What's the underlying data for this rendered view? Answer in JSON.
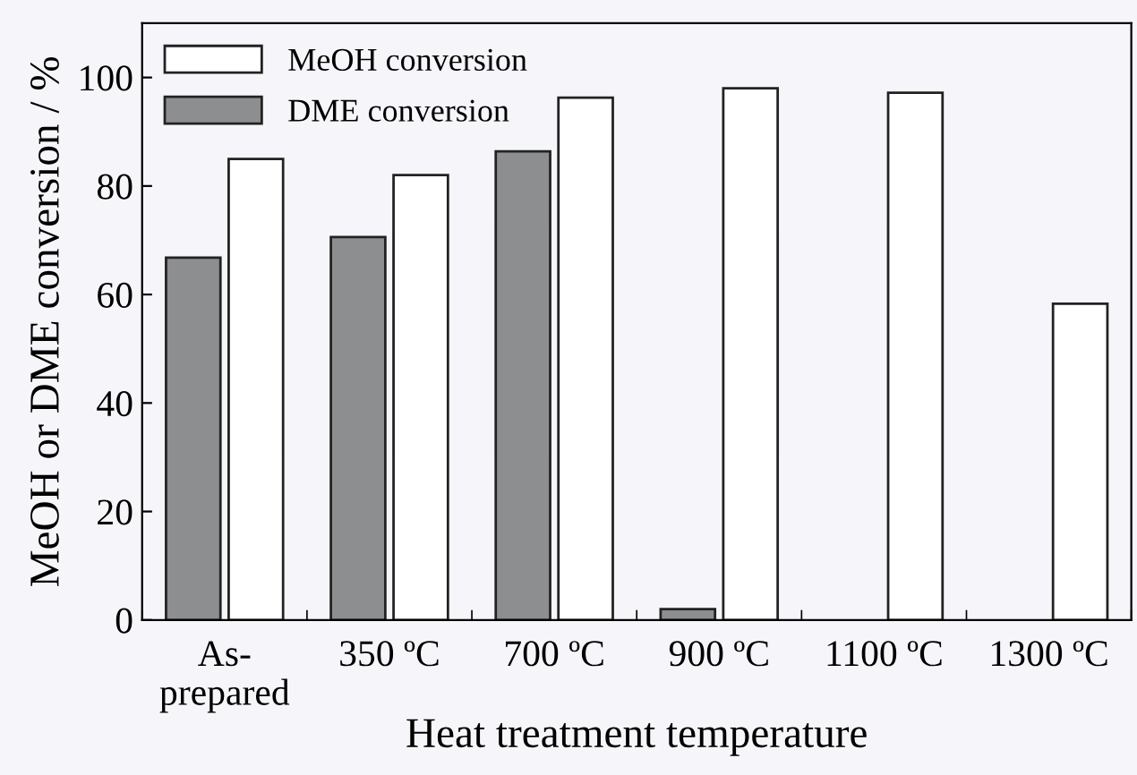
{
  "chart_data": {
    "type": "bar",
    "xlabel": "Heat treatment temperature",
    "ylabel": "MeOH or DME conversion / %",
    "categories": [
      "As-\nprepared",
      "350 ºC",
      "700 ºC",
      "900 ºC",
      "1100 ºC",
      "1300 ºC"
    ],
    "series": [
      {
        "name": "DME conversion",
        "color": "#8c8e90",
        "values": [
          66.8,
          70.6,
          86.4,
          2.0,
          null,
          null
        ]
      },
      {
        "name": "MeOH conversion",
        "color": "#ffffff",
        "values": [
          85.0,
          82.0,
          96.3,
          98.0,
          97.2,
          58.3
        ]
      }
    ],
    "ylim": [
      0,
      110
    ],
    "yticks": [
      0,
      20,
      40,
      60,
      80,
      100
    ],
    "grid": false,
    "legend": "top left"
  }
}
